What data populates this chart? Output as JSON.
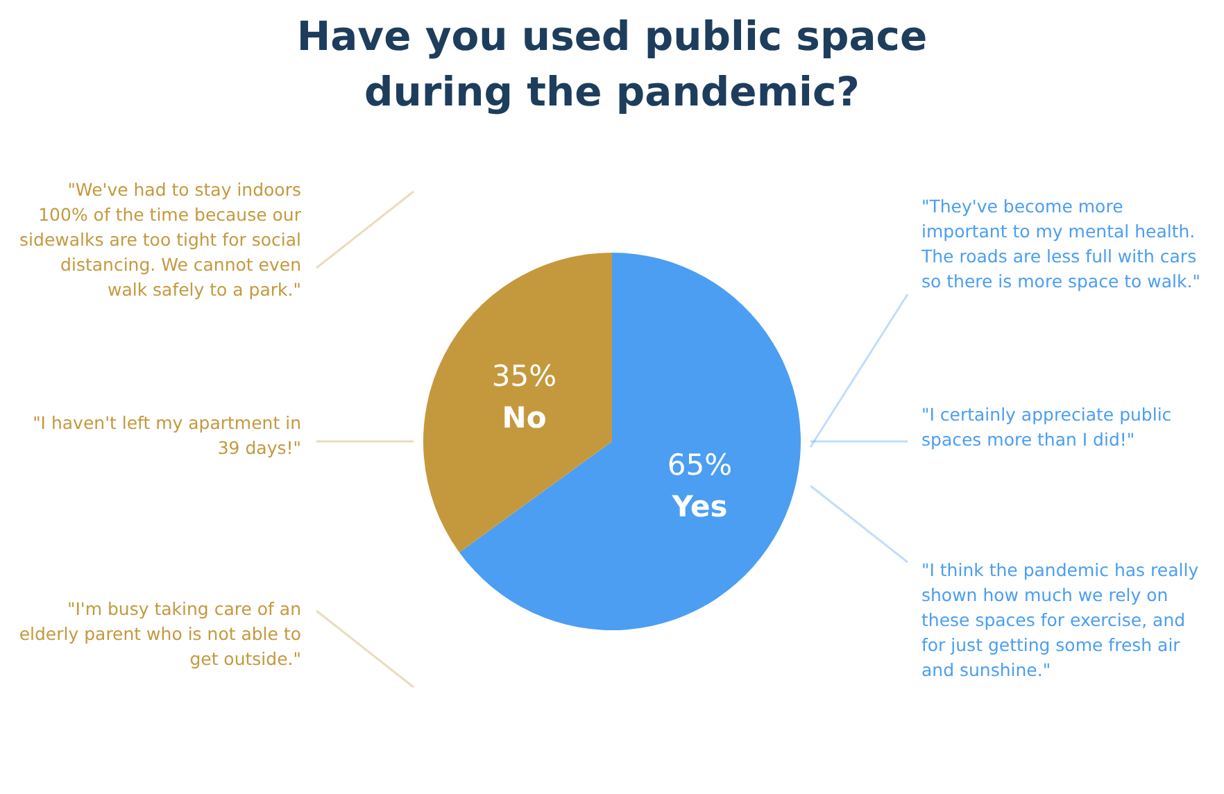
{
  "chart_data": {
    "type": "pie",
    "title": "Have you used public space\nduring the pandemic?",
    "categories": [
      "Yes",
      "No"
    ],
    "values": [
      65,
      35
    ],
    "colors": [
      "#4b9ef2",
      "#c4993e"
    ],
    "value_labels": [
      "65%",
      "35%"
    ],
    "annotations": [
      "\"We've had to stay indoors 100% of the time because our sidewalks are too tight for social distancing. We cannot even walk safely to a park.\"",
      "\"I haven't left my apartment in 39 days!\"",
      "\"I'm busy taking care of an elderly parent who is not able to get outside.\"",
      "\"They've become more important to my mental health. The roads are less full with cars so there is more space to walk.\"",
      "\"I certainly appreciate public spaces more than I did!\"",
      "\"I think the pandemic has really shown how much we rely on these spaces for exercise, and for just getting some fresh air and sunshine.\""
    ]
  }
}
